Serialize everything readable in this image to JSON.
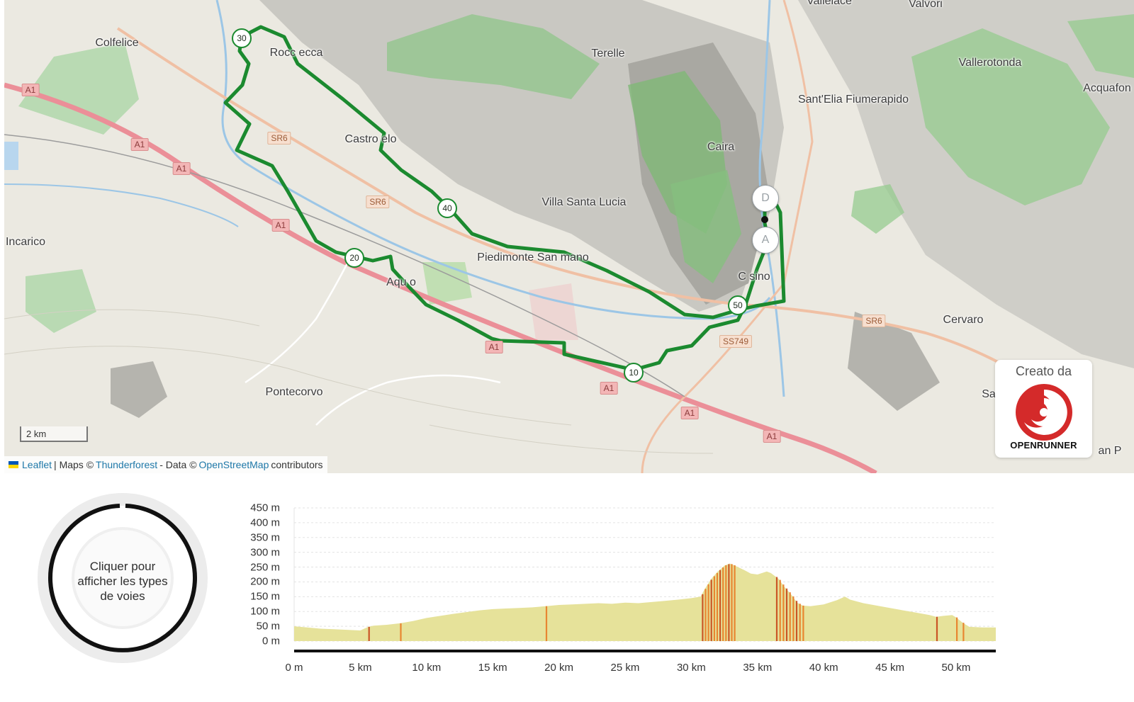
{
  "map": {
    "places": [
      {
        "key": "colfelice",
        "label": "Colfelice"
      },
      {
        "key": "roccasecca",
        "label": "Rocc  ecca"
      },
      {
        "key": "terelle",
        "label": "Terelle"
      },
      {
        "key": "vallerotonda",
        "label": "Vallerotonda"
      },
      {
        "key": "acquafondata",
        "label": "Acquafon"
      },
      {
        "key": "santelia",
        "label": "Sant'Elia Fiumerapido"
      },
      {
        "key": "castrocielo",
        "label": "Castro  elo"
      },
      {
        "key": "caira",
        "label": "Caira"
      },
      {
        "key": "villa-santa-lucia",
        "label": "Villa Santa Lucia"
      },
      {
        "key": "incarico",
        "label": "Incarico"
      },
      {
        "key": "piedimonte",
        "label": "Piedimonte San  mano"
      },
      {
        "key": "aquino",
        "label": "Aqu  o"
      },
      {
        "key": "cassino",
        "label": "C   sino"
      },
      {
        "key": "cervaro",
        "label": "Cervaro"
      },
      {
        "key": "pontecorvo",
        "label": "Pontecorvo"
      },
      {
        "key": "sa",
        "label": "Sa"
      },
      {
        "key": "sanp",
        "label": "an P"
      },
      {
        "key": "vallelace",
        "label": "Vallelace"
      },
      {
        "key": "valvori",
        "label": "Valvori"
      }
    ],
    "road_shields": [
      {
        "key": "a1-1",
        "label": "A1",
        "type": "a1"
      },
      {
        "key": "a1-2",
        "label": "A1",
        "type": "a1"
      },
      {
        "key": "a1-3",
        "label": "A1",
        "type": "a1"
      },
      {
        "key": "a1-4",
        "label": "A1",
        "type": "a1"
      },
      {
        "key": "a1-5",
        "label": "A1",
        "type": "a1"
      },
      {
        "key": "a1-6",
        "label": "A1",
        "type": "a1"
      },
      {
        "key": "a1-7",
        "label": "A1",
        "type": "a1"
      },
      {
        "key": "a1-8",
        "label": "A1",
        "type": "a1"
      },
      {
        "key": "sr6-1",
        "label": "SR6",
        "type": "sr"
      },
      {
        "key": "sr6-2",
        "label": "SR6",
        "type": "sr"
      },
      {
        "key": "sr6-3",
        "label": "SR6",
        "type": "sr"
      },
      {
        "key": "ss749",
        "label": "SS749",
        "type": "sr"
      }
    ],
    "km_markers": [
      "10",
      "20",
      "30",
      "40",
      "50"
    ],
    "start_label": "D",
    "end_label": "A",
    "route_color": "#1b8a2f",
    "scale_label": "2 km",
    "attribution": {
      "leaflet": "Leaflet",
      "maps_prefix": "| Maps ©",
      "thunderforest": "Thunderforest",
      "data_prefix": "- Data ©",
      "osm": "OpenStreetMap",
      "suffix": "contributors"
    },
    "credit": {
      "label": "Creato da",
      "brand": "OPENRUNNER",
      "brand_color": "#d42a2a"
    }
  },
  "road_types_widget": {
    "text": "Cliquer pour afficher les types de voies"
  },
  "elevation_profile": {
    "y_labels": [
      "450 m",
      "400 m",
      "350 m",
      "300 m",
      "250 m",
      "200 m",
      "150 m",
      "100 m",
      "50 m",
      "0 m"
    ],
    "x_labels": [
      "0 m",
      "5 km",
      "10 km",
      "15 km",
      "20 km",
      "25 km",
      "30 km",
      "35 km",
      "40 km",
      "45 km",
      "50 km"
    ],
    "fill_color": "#e6e29a",
    "steep_color": "#e8761e"
  },
  "chart_data": {
    "type": "area",
    "title": "",
    "xlabel": "",
    "ylabel": "",
    "xlim": [
      0,
      53
    ],
    "ylim": [
      0,
      450
    ],
    "x_unit": "km",
    "y_unit": "m",
    "series": [
      {
        "x": [
          0,
          1,
          2,
          3,
          4,
          5,
          5.6,
          6,
          7,
          8,
          9,
          10,
          11,
          12,
          13,
          14,
          15,
          16,
          17,
          18,
          19,
          20,
          21,
          22,
          23,
          24,
          25,
          26,
          27,
          28,
          29,
          30,
          30.7,
          31,
          31.5,
          32,
          32.5,
          32.9,
          33.3,
          34,
          34.5,
          35,
          35.7,
          36,
          36.6,
          37,
          37.5,
          38,
          38.4,
          39,
          40,
          41,
          41.6,
          42,
          43,
          44,
          45,
          46,
          47,
          48,
          48.5,
          49,
          49.7,
          50,
          50.5,
          51,
          52,
          53
        ],
        "y": [
          50,
          46,
          42,
          40,
          38,
          36,
          48,
          52,
          55,
          60,
          68,
          78,
          85,
          92,
          98,
          104,
          108,
          110,
          112,
          114,
          118,
          122,
          124,
          126,
          128,
          126,
          130,
          128,
          132,
          136,
          140,
          145,
          150,
          175,
          210,
          235,
          255,
          262,
          255,
          240,
          228,
          225,
          235,
          230,
          210,
          185,
          160,
          130,
          120,
          118,
          124,
          138,
          150,
          140,
          128,
          120,
          112,
          104,
          96,
          88,
          82,
          85,
          88,
          80,
          62,
          48,
          46,
          46
        ]
      }
    ]
  }
}
